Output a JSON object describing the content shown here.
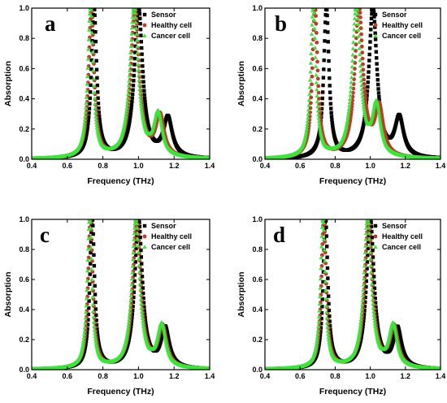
{
  "figure": {
    "panels": [
      "a",
      "b",
      "c",
      "d"
    ]
  },
  "chart_data": [
    {
      "panel_letter": "a",
      "type": "scatter",
      "xlabel": "Frequency (THz)",
      "ylabel": "Absorption",
      "xlim": [
        0.4,
        1.4
      ],
      "ylim": [
        0.0,
        1.0
      ],
      "xticks": [
        "0.4",
        "0.6",
        "0.8",
        "1.0",
        "1.2",
        "1.4"
      ],
      "yticks": [
        "0.0",
        "0.2",
        "0.4",
        "0.6",
        "0.8",
        "1.0"
      ],
      "legend_position": "top-right",
      "series": [
        {
          "name": "Sensor",
          "color": "#000000",
          "marker": "square",
          "peaks": [
            {
              "f": 0.75,
              "a": 1.0,
              "w": 0.018
            },
            {
              "f": 1.0,
              "a": 1.0,
              "w": 0.028
            },
            {
              "f": 1.165,
              "a": 0.26,
              "w": 0.03
            }
          ]
        },
        {
          "name": "Healthy cell",
          "color": "#c0392b",
          "marker": "circle",
          "peaks": [
            {
              "f": 0.735,
              "a": 1.0,
              "w": 0.018
            },
            {
              "f": 0.98,
              "a": 1.0,
              "w": 0.028
            },
            {
              "f": 1.12,
              "a": 0.27,
              "w": 0.028
            }
          ]
        },
        {
          "name": "Cancer cell",
          "color": "#39e639",
          "marker": "triangle",
          "peaks": [
            {
              "f": 0.73,
              "a": 1.0,
              "w": 0.018
            },
            {
              "f": 0.975,
              "a": 1.0,
              "w": 0.028
            },
            {
              "f": 1.11,
              "a": 0.28,
              "w": 0.028
            }
          ]
        }
      ]
    },
    {
      "panel_letter": "b",
      "type": "scatter",
      "xlabel": "Frequency (THz)",
      "ylabel": "Absorption",
      "xlim": [
        0.4,
        1.4
      ],
      "ylim": [
        0.0,
        1.0
      ],
      "xticks": [
        "0.4",
        "0.6",
        "0.8",
        "1.0",
        "1.2",
        "1.4"
      ],
      "yticks": [
        "0.0",
        "0.2",
        "0.4",
        "0.6",
        "0.8",
        "1.0"
      ],
      "legend_position": "top-right",
      "series": [
        {
          "name": "Sensor",
          "color": "#000000",
          "marker": "square",
          "peaks": [
            {
              "f": 0.75,
              "a": 1.0,
              "w": 0.018
            },
            {
              "f": 1.015,
              "a": 1.0,
              "w": 0.028
            },
            {
              "f": 1.165,
              "a": 0.26,
              "w": 0.03
            }
          ]
        },
        {
          "name": "Healthy cell",
          "color": "#c0392b",
          "marker": "circle",
          "peaks": [
            {
              "f": 0.685,
              "a": 1.0,
              "w": 0.018
            },
            {
              "f": 0.935,
              "a": 1.0,
              "w": 0.028
            },
            {
              "f": 1.05,
              "a": 0.32,
              "w": 0.028
            }
          ]
        },
        {
          "name": "Cancer cell",
          "color": "#39e639",
          "marker": "triangle",
          "peaks": [
            {
              "f": 0.675,
              "a": 1.0,
              "w": 0.018
            },
            {
              "f": 0.92,
              "a": 1.0,
              "w": 0.028
            },
            {
              "f": 1.035,
              "a": 0.33,
              "w": 0.028
            }
          ]
        }
      ]
    },
    {
      "panel_letter": "c",
      "type": "scatter",
      "xlabel": "Frequency (THz)",
      "ylabel": "Absorption",
      "xlim": [
        0.4,
        1.4
      ],
      "ylim": [
        0.0,
        1.0
      ],
      "xticks": [
        "0.4",
        "0.6",
        "0.8",
        "1.0",
        "1.2",
        "1.4"
      ],
      "yticks": [
        "0.0",
        "0.2",
        "0.4",
        "0.6",
        "0.8",
        "1.0"
      ],
      "legend_position": "top-right",
      "series": [
        {
          "name": "Sensor",
          "color": "#000000",
          "marker": "square",
          "peaks": [
            {
              "f": 0.74,
              "a": 1.0,
              "w": 0.016
            },
            {
              "f": 1.0,
              "a": 1.0,
              "w": 0.026
            },
            {
              "f": 1.15,
              "a": 0.26,
              "w": 0.028
            }
          ]
        },
        {
          "name": "Healthy cell",
          "color": "#c0392b",
          "marker": "circle",
          "peaks": [
            {
              "f": 0.73,
              "a": 1.0,
              "w": 0.016
            },
            {
              "f": 0.99,
              "a": 1.0,
              "w": 0.026
            },
            {
              "f": 1.135,
              "a": 0.27,
              "w": 0.028
            }
          ]
        },
        {
          "name": "Cancer cell",
          "color": "#39e639",
          "marker": "triangle",
          "peaks": [
            {
              "f": 0.725,
              "a": 1.0,
              "w": 0.016
            },
            {
              "f": 0.985,
              "a": 1.0,
              "w": 0.026
            },
            {
              "f": 1.13,
              "a": 0.28,
              "w": 0.028
            }
          ]
        }
      ]
    },
    {
      "panel_letter": "d",
      "type": "scatter",
      "xlabel": "Frequency (THz)",
      "ylabel": "Absorption",
      "xlim": [
        0.4,
        1.4
      ],
      "ylim": [
        0.0,
        1.0
      ],
      "xticks": [
        "0.4",
        "0.6",
        "0.8",
        "1.0",
        "1.2",
        "1.4"
      ],
      "yticks": [
        "0.0",
        "0.2",
        "0.4",
        "0.6",
        "0.8",
        "1.0"
      ],
      "legend_position": "top-right",
      "series": [
        {
          "name": "Sensor",
          "color": "#000000",
          "marker": "square",
          "peaks": [
            {
              "f": 0.745,
              "a": 1.0,
              "w": 0.016
            },
            {
              "f": 1.0,
              "a": 1.0,
              "w": 0.026
            },
            {
              "f": 1.155,
              "a": 0.26,
              "w": 0.028
            }
          ]
        },
        {
          "name": "Healthy cell",
          "color": "#c0392b",
          "marker": "circle",
          "peaks": [
            {
              "f": 0.735,
              "a": 1.0,
              "w": 0.016
            },
            {
              "f": 0.99,
              "a": 1.0,
              "w": 0.026
            },
            {
              "f": 1.135,
              "a": 0.27,
              "w": 0.028
            }
          ]
        },
        {
          "name": "Cancer cell",
          "color": "#39e639",
          "marker": "triangle",
          "peaks": [
            {
              "f": 0.73,
              "a": 1.0,
              "w": 0.016
            },
            {
              "f": 0.985,
              "a": 1.0,
              "w": 0.026
            },
            {
              "f": 1.13,
              "a": 0.28,
              "w": 0.028
            }
          ]
        }
      ]
    }
  ]
}
